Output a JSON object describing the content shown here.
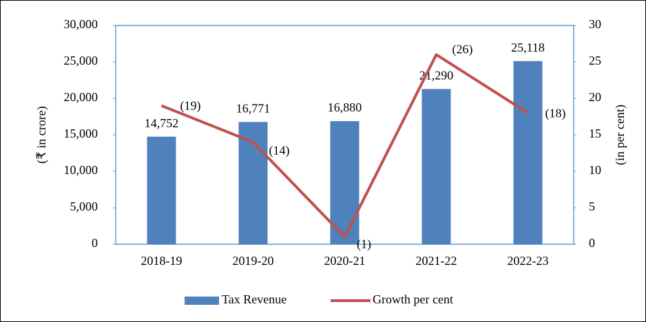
{
  "chart_data": {
    "type": "combo",
    "categories": [
      "2018-19",
      "2019-20",
      "2020-21",
      "2021-22",
      "2022-23"
    ],
    "series": [
      {
        "name": "Tax Revenue",
        "type": "bar",
        "color": "#4f81bd",
        "axis": "y",
        "values": [
          14752,
          16771,
          16880,
          21290,
          25118
        ],
        "value_labels": [
          "14,752",
          "16,771",
          "16,880",
          "21,290",
          "25,118"
        ]
      },
      {
        "name": "Growth per cent",
        "type": "line",
        "color": "#c0504d",
        "axis": "y2",
        "values": [
          19,
          14,
          1,
          26,
          18
        ],
        "value_labels": [
          "(19)",
          "(14)",
          "(1)",
          "(26)",
          "(18)"
        ]
      }
    ],
    "ylabel": "(₹ in crore)",
    "y2label": "(in per cent)",
    "ylim": [
      0,
      30000
    ],
    "yticks": [
      0,
      {
        "value": 5000,
        "label": "5,000"
      },
      {
        "value": 10000,
        "label": "10,000"
      },
      {
        "value": 15000,
        "label": "15,000"
      },
      {
        "value": 20000,
        "label": "20,000"
      },
      {
        "value": 25000,
        "label": "25,000"
      },
      {
        "value": 30000,
        "label": "30,000"
      }
    ],
    "y2lim": [
      0,
      30
    ],
    "y2ticks": [
      0,
      5,
      10,
      15,
      20,
      25,
      30
    ],
    "legend": "bottom"
  }
}
